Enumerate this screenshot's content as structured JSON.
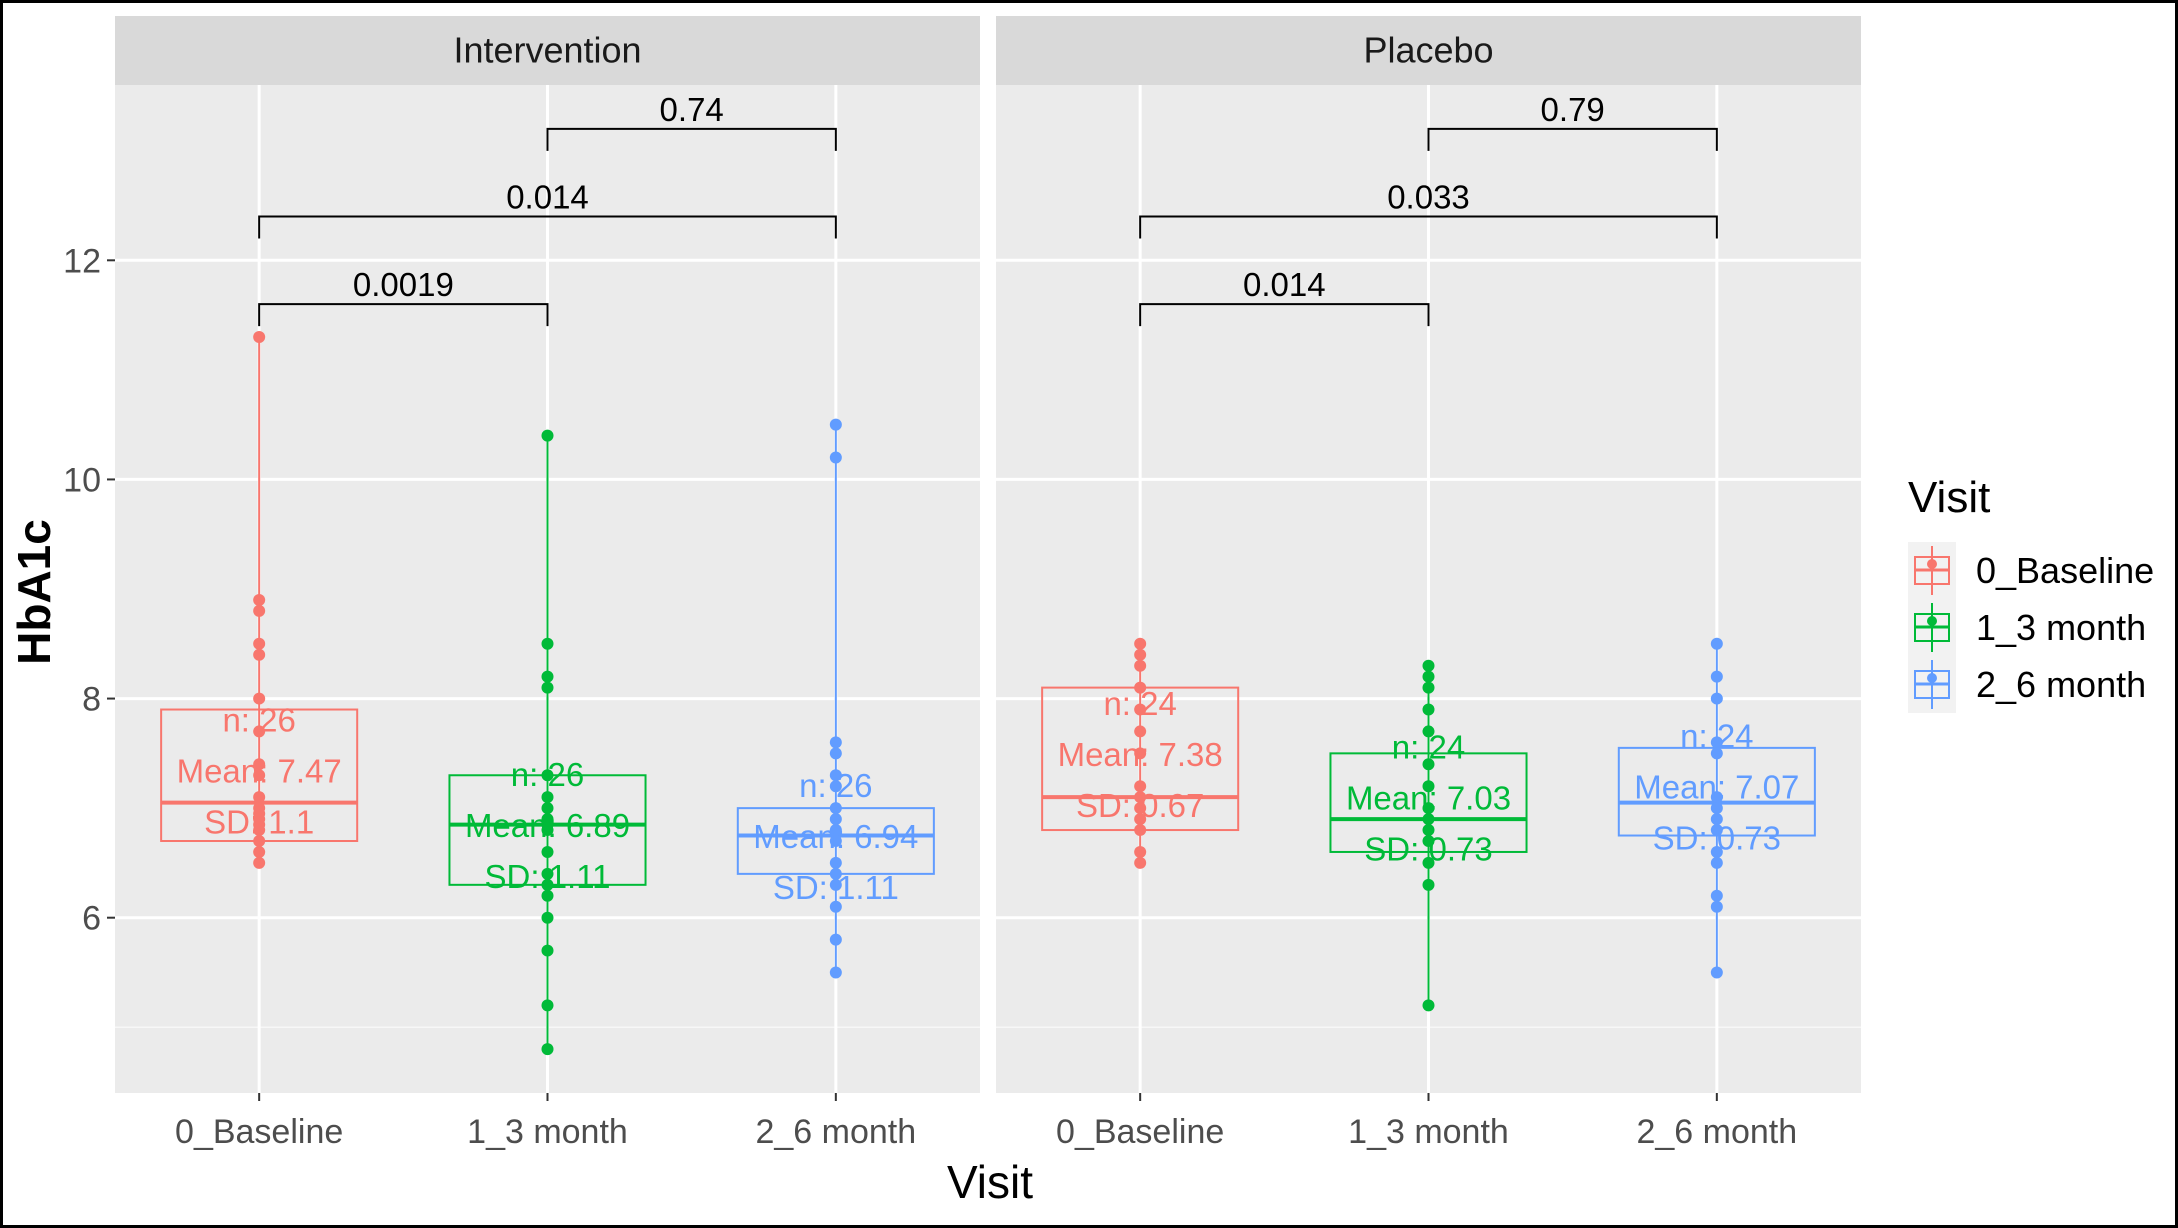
{
  "chart_data": {
    "type": "box",
    "ylabel": "HbA1c",
    "xlabel": "Visit",
    "ylim": [
      4.4,
      13.6
    ],
    "yticks": [
      6,
      8,
      10,
      12
    ],
    "grid": true,
    "legend": {
      "title": "Visit",
      "placement": "right",
      "entries": [
        "0_Baseline",
        "1_3 month",
        "2_6 month"
      ]
    },
    "colors": {
      "0_Baseline": "#F8766D",
      "1_3 month": "#00BA38",
      "2_6 month": "#619CFF"
    },
    "categories": [
      "0_Baseline",
      "1_3 month",
      "2_6 month"
    ],
    "panels": [
      {
        "name": "Intervention",
        "groups": [
          {
            "category": "0_Baseline",
            "n_label": "n: 26",
            "mean_label": "Mean: 7.47",
            "sd_label": "SD: 1.1",
            "q1": 6.7,
            "median": 7.05,
            "q3": 7.9,
            "points": [
              11.3,
              8.9,
              8.8,
              8.5,
              8.4,
              8.0,
              7.7,
              7.4,
              7.3,
              7.1,
              7.0,
              6.95,
              6.9,
              6.85,
              6.8,
              6.7,
              6.6,
              6.5
            ]
          },
          {
            "category": "1_3 month",
            "n_label": "n: 26",
            "mean_label": "Mean: 6.89",
            "sd_label": "SD: 1.11",
            "q1": 6.3,
            "median": 6.85,
            "q3": 7.3,
            "points": [
              10.4,
              8.5,
              8.2,
              8.1,
              7.3,
              7.1,
              7.0,
              6.9,
              6.85,
              6.8,
              6.6,
              6.4,
              6.3,
              6.2,
              6.0,
              5.7,
              5.2,
              4.8
            ]
          },
          {
            "category": "2_6 month",
            "n_label": "n: 26",
            "mean_label": "Mean: 6.94",
            "sd_label": "SD: 1.11",
            "q1": 6.4,
            "median": 6.75,
            "q3": 7.0,
            "points": [
              10.5,
              10.2,
              7.6,
              7.5,
              7.3,
              7.2,
              7.0,
              6.9,
              6.8,
              6.7,
              6.5,
              6.4,
              6.3,
              6.1,
              5.8,
              5.5
            ]
          }
        ],
        "comparisons": [
          {
            "from": "0_Baseline",
            "to": "1_3 month",
            "y": 11.6,
            "label": "0.0019"
          },
          {
            "from": "0_Baseline",
            "to": "2_6 month",
            "y": 12.4,
            "label": "0.014"
          },
          {
            "from": "1_3 month",
            "to": "2_6 month",
            "y": 13.2,
            "label": "0.74"
          }
        ]
      },
      {
        "name": "Placebo",
        "groups": [
          {
            "category": "0_Baseline",
            "n_label": "n: 24",
            "mean_label": "Mean: 7.38",
            "sd_label": "SD: 0.67",
            "q1": 6.8,
            "median": 7.1,
            "q3": 8.1,
            "points": [
              8.5,
              8.4,
              8.3,
              8.1,
              7.9,
              7.7,
              7.5,
              7.2,
              7.1,
              7.0,
              6.9,
              6.8,
              6.6,
              6.5
            ]
          },
          {
            "category": "1_3 month",
            "n_label": "n: 24",
            "mean_label": "Mean: 7.03",
            "sd_label": "SD: 0.73",
            "q1": 6.6,
            "median": 6.9,
            "q3": 7.5,
            "points": [
              8.3,
              8.2,
              8.1,
              7.9,
              7.7,
              7.4,
              7.2,
              7.0,
              6.9,
              6.8,
              6.7,
              6.5,
              6.3,
              5.2
            ]
          },
          {
            "category": "2_6 month",
            "n_label": "n: 24",
            "mean_label": "Mean: 7.07",
            "sd_label": "SD: 0.73",
            "q1": 6.75,
            "median": 7.05,
            "q3": 7.55,
            "points": [
              8.5,
              8.2,
              8.0,
              7.6,
              7.5,
              7.1,
              7.0,
              6.9,
              6.8,
              6.6,
              6.5,
              6.2,
              6.1,
              5.5
            ]
          }
        ],
        "comparisons": [
          {
            "from": "0_Baseline",
            "to": "1_3 month",
            "y": 11.6,
            "label": "0.014"
          },
          {
            "from": "0_Baseline",
            "to": "2_6 month",
            "y": 12.4,
            "label": "0.033"
          },
          {
            "from": "1_3 month",
            "to": "2_6 month",
            "y": 13.2,
            "label": "0.79"
          }
        ]
      }
    ]
  }
}
